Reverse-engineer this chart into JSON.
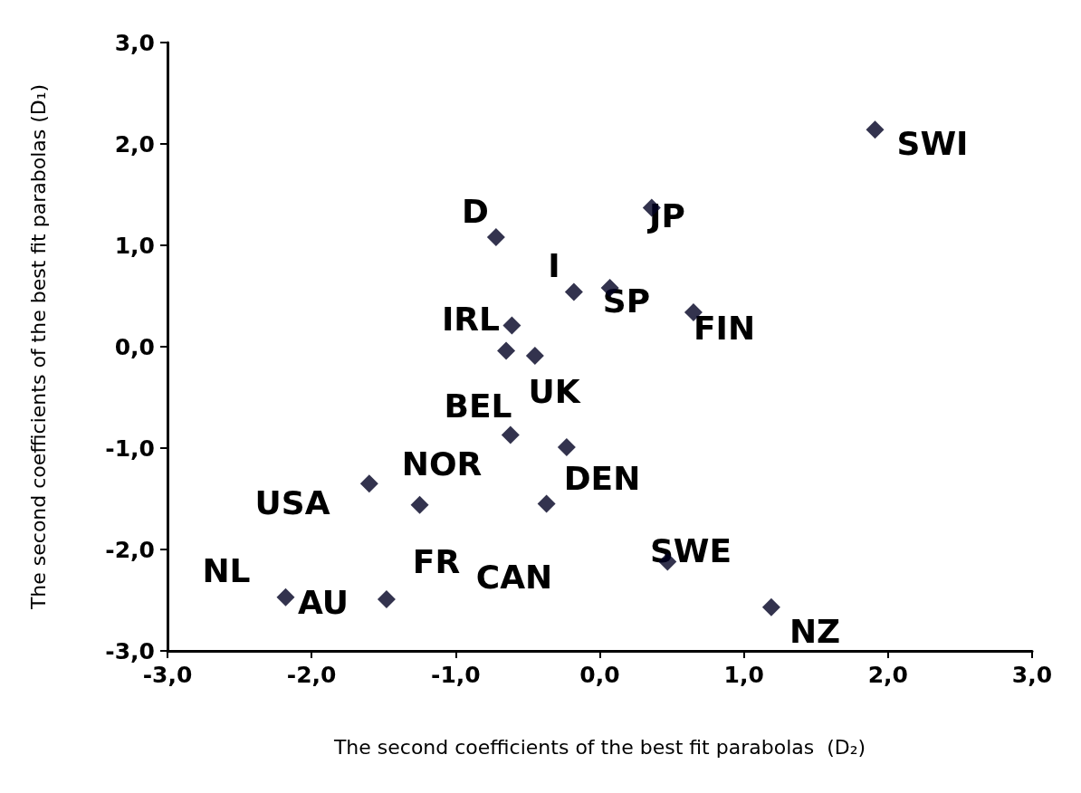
{
  "chart_data": {
    "type": "scatter",
    "xlabel": "The second coefficients of the best fit parabolas  (D₂)",
    "ylabel": "The second coefficients of the best fit parabolas (D₁)",
    "x": [
      1.91,
      0.36,
      -0.72,
      -0.18,
      0.07,
      0.65,
      -0.61,
      -0.65,
      -0.45,
      -0.62,
      -0.23,
      -1.6,
      -1.25,
      -0.37,
      0.47,
      1.19,
      -2.18,
      -1.48
    ],
    "values": [
      2.14,
      1.37,
      1.08,
      0.54,
      0.58,
      0.34,
      0.21,
      -0.04,
      -0.09,
      -0.87,
      -0.99,
      -1.35,
      -1.56,
      -1.55,
      -2.12,
      -2.57,
      -2.47,
      -2.49
    ],
    "color": "#000022",
    "marker": "diamond",
    "grid": false,
    "xlim": [
      -3,
      3
    ],
    "ylim": [
      -3,
      3
    ],
    "xticks": [
      {
        "value": -3,
        "label": "-3,0"
      },
      {
        "value": -2,
        "label": "-2,0"
      },
      {
        "value": -1,
        "label": "-1,0"
      },
      {
        "value": 0,
        "label": "0,0"
      },
      {
        "value": 1,
        "label": "1,0"
      },
      {
        "value": 2,
        "label": "2,0"
      },
      {
        "value": 3,
        "label": "3,0"
      }
    ],
    "yticks": [
      {
        "value": -3,
        "label": "-3,0"
      },
      {
        "value": -2,
        "label": "-2,0"
      },
      {
        "value": -1,
        "label": "-1,0"
      },
      {
        "value": 0,
        "label": "0,0"
      },
      {
        "value": 1,
        "label": "1,0"
      },
      {
        "value": 2,
        "label": "2,0"
      },
      {
        "value": 3,
        "label": "3,0"
      }
    ],
    "annotations": [
      "SWI",
      "JP",
      "D",
      "I",
      "SP",
      "FIN",
      "IRL",
      "UK",
      "BEL",
      "NOR",
      "DEN",
      "USA",
      "NL",
      "AU",
      "FR",
      "CAN",
      "SWE",
      "NZ"
    ]
  }
}
